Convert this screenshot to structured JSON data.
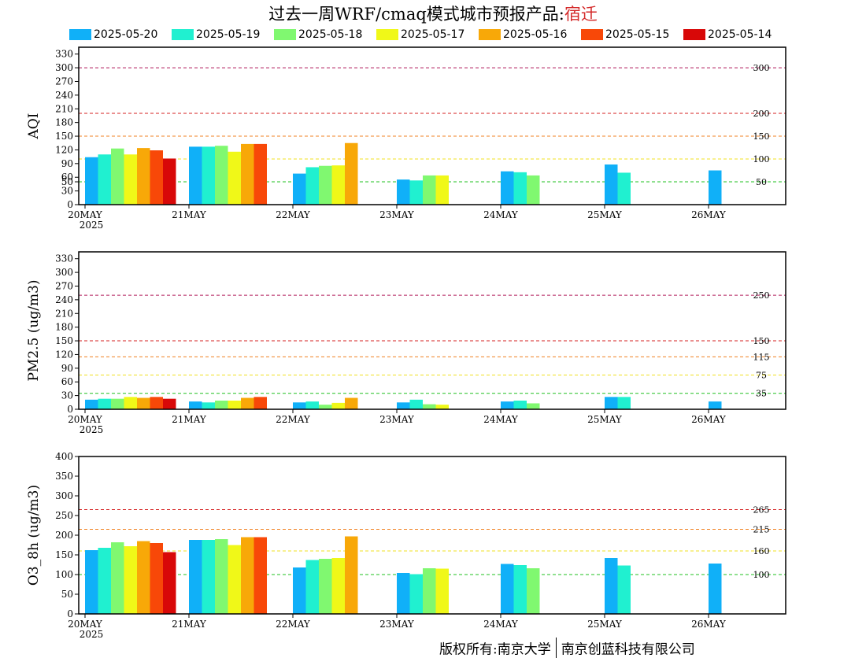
{
  "title": {
    "main": "过去一周WRF/cmaq模式城市预报产品:",
    "city": "宿迁"
  },
  "legend": [
    {
      "label": "2025-05-20",
      "color": "#10b0f8"
    },
    {
      "label": "2025-05-19",
      "color": "#20f0d0"
    },
    {
      "label": "2025-05-18",
      "color": "#80f870"
    },
    {
      "label": "2025-05-17",
      "color": "#f0f818"
    },
    {
      "label": "2025-05-16",
      "color": "#f8a808"
    },
    {
      "label": "2025-05-15",
      "color": "#f84808"
    },
    {
      "label": "2025-05-14",
      "color": "#d80808"
    }
  ],
  "footer": {
    "left": "版权所有:南京大学",
    "right": "南京创蓝科技有限公司"
  },
  "chart_data": [
    {
      "type": "bar",
      "ylabel": "AQI",
      "ylim": [
        0,
        345
      ],
      "yticks": [
        "0",
        "30",
        "50",
        "60",
        "90",
        "120",
        "150",
        "180",
        "210",
        "240",
        "270",
        "300",
        "330"
      ],
      "categories": [
        "20MAY",
        "21MAY",
        "22MAY",
        "23MAY",
        "24MAY",
        "25MAY",
        "26MAY"
      ],
      "year_label": "2025",
      "thresholds": [
        {
          "value": 300,
          "label": "300",
          "color": "#b01a5a"
        },
        {
          "value": 200,
          "label": "200",
          "color": "#d42020"
        },
        {
          "value": 150,
          "label": "150",
          "color": "#f08020"
        },
        {
          "value": 100,
          "label": "100",
          "color": "#f0e020"
        },
        {
          "value": 50,
          "label": "50",
          "color": "#20c020"
        }
      ],
      "series": [
        {
          "name": "2025-05-20",
          "values": [
            104,
            127,
            68,
            55,
            73,
            88,
            75
          ]
        },
        {
          "name": "2025-05-19",
          "values": [
            110,
            127,
            82,
            53,
            71,
            70,
            null
          ]
        },
        {
          "name": "2025-05-18",
          "values": [
            123,
            129,
            85,
            64,
            64,
            null,
            null
          ]
        },
        {
          "name": "2025-05-17",
          "values": [
            110,
            116,
            86,
            64,
            null,
            null,
            null
          ]
        },
        {
          "name": "2025-05-16",
          "values": [
            124,
            133,
            135,
            null,
            null,
            null,
            null
          ]
        },
        {
          "name": "2025-05-15",
          "values": [
            119,
            133,
            null,
            null,
            null,
            null,
            null
          ]
        },
        {
          "name": "2025-05-14",
          "values": [
            101,
            null,
            null,
            null,
            null,
            null,
            null
          ]
        }
      ]
    },
    {
      "type": "bar",
      "ylabel": "PM2.5 (ug/m3)",
      "ylim": [
        0,
        345
      ],
      "yticks": [
        "0",
        "30",
        "60",
        "90",
        "120",
        "150",
        "180",
        "210",
        "240",
        "270",
        "300",
        "330"
      ],
      "categories": [
        "20MAY",
        "21MAY",
        "22MAY",
        "23MAY",
        "24MAY",
        "25MAY",
        "26MAY"
      ],
      "year_label": "2025",
      "thresholds": [
        {
          "value": 250,
          "label": "250",
          "color": "#b01a5a"
        },
        {
          "value": 150,
          "label": "150",
          "color": "#d42020"
        },
        {
          "value": 115,
          "label": "115",
          "color": "#f08020"
        },
        {
          "value": 75,
          "label": "75",
          "color": "#f0e020"
        },
        {
          "value": 35,
          "label": "35",
          "color": "#20c020"
        }
      ],
      "series": [
        {
          "name": "2025-05-20",
          "values": [
            21,
            17,
            15,
            15,
            17,
            27,
            17
          ]
        },
        {
          "name": "2025-05-19",
          "values": [
            23,
            15,
            17,
            21,
            19,
            27,
            null
          ]
        },
        {
          "name": "2025-05-18",
          "values": [
            23,
            19,
            10,
            11,
            13,
            null,
            null
          ]
        },
        {
          "name": "2025-05-17",
          "values": [
            27,
            19,
            14,
            10,
            null,
            null,
            null
          ]
        },
        {
          "name": "2025-05-16",
          "values": [
            25,
            25,
            25,
            null,
            null,
            null,
            null
          ]
        },
        {
          "name": "2025-05-15",
          "values": [
            27,
            27,
            null,
            null,
            null,
            null,
            null
          ]
        },
        {
          "name": "2025-05-14",
          "values": [
            23,
            null,
            null,
            null,
            null,
            null,
            null
          ]
        }
      ]
    },
    {
      "type": "bar",
      "ylabel": "O3_8h (ug/m3)",
      "ylim": [
        0,
        400
      ],
      "yticks": [
        "0",
        "50",
        "100",
        "150",
        "200",
        "250",
        "300",
        "350",
        "400"
      ],
      "categories": [
        "20MAY",
        "21MAY",
        "22MAY",
        "23MAY",
        "24MAY",
        "25MAY",
        "26MAY"
      ],
      "year_label": "2025",
      "thresholds": [
        {
          "value": 265,
          "label": "265",
          "color": "#d42020"
        },
        {
          "value": 215,
          "label": "215",
          "color": "#f08020"
        },
        {
          "value": 160,
          "label": "160",
          "color": "#f0e020"
        },
        {
          "value": 100,
          "label": "100",
          "color": "#20c020"
        }
      ],
      "series": [
        {
          "name": "2025-05-20",
          "values": [
            162,
            188,
            118,
            104,
            127,
            142,
            128
          ]
        },
        {
          "name": "2025-05-19",
          "values": [
            168,
            188,
            137,
            101,
            124,
            123,
            null
          ]
        },
        {
          "name": "2025-05-18",
          "values": [
            182,
            190,
            140,
            116,
            116,
            null,
            null
          ]
        },
        {
          "name": "2025-05-17",
          "values": [
            172,
            175,
            142,
            115,
            null,
            null,
            null
          ]
        },
        {
          "name": "2025-05-16",
          "values": [
            185,
            195,
            197,
            null,
            null,
            null,
            null
          ]
        },
        {
          "name": "2025-05-15",
          "values": [
            180,
            195,
            null,
            null,
            null,
            null,
            null
          ]
        },
        {
          "name": "2025-05-14",
          "values": [
            157,
            null,
            null,
            null,
            null,
            null,
            null
          ]
        }
      ]
    }
  ]
}
